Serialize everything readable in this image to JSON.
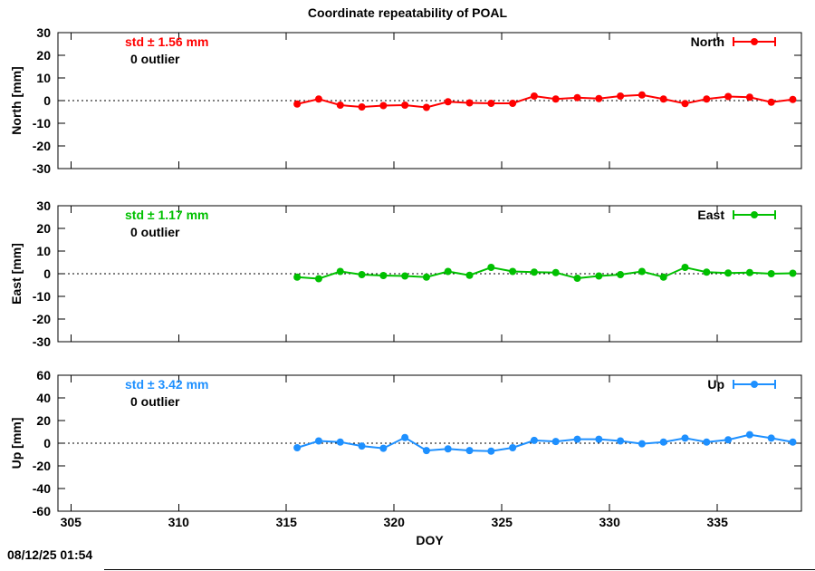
{
  "title": "Coordinate repeatability of POAL",
  "timestamp": "08/12/25 01:54",
  "x_axis": {
    "label": "DOY",
    "range": [
      304.4,
      338.9
    ],
    "ticks": [
      305,
      310,
      315,
      320,
      325,
      330,
      335
    ]
  },
  "chart_data": [
    {
      "type": "line",
      "name": "north-panel",
      "legend": "North",
      "ylabel": "North [mm]",
      "color": "#ff0000",
      "std_label": "std ± 1.56 mm",
      "outlier_label": "0 outlier",
      "ylim": [
        -30,
        30
      ],
      "yticks": [
        -30,
        -20,
        -10,
        0,
        10,
        20,
        30
      ],
      "zero_line": true,
      "x": [
        315.5,
        316.5,
        317.5,
        318.5,
        319.5,
        320.5,
        321.5,
        322.5,
        323.5,
        324.5,
        325.5,
        326.5,
        327.5,
        328.5,
        329.5,
        330.5,
        331.5,
        332.5,
        333.5,
        334.5,
        335.5,
        336.5,
        337.5,
        338.5
      ],
      "values": [
        -1.5,
        0.7,
        -2.0,
        -2.8,
        -2.2,
        -2.0,
        -3.0,
        -0.5,
        -1.0,
        -1.2,
        -1.2,
        2.0,
        0.7,
        1.3,
        0.9,
        2.0,
        2.5,
        0.7,
        -1.3,
        0.7,
        1.8,
        1.5,
        -0.7,
        0.5
      ]
    },
    {
      "type": "line",
      "name": "east-panel",
      "legend": "East",
      "ylabel": "East [mm]",
      "color": "#00c000",
      "std_label": "std ± 1.17 mm",
      "outlier_label": "0 outlier",
      "ylim": [
        -30,
        30
      ],
      "yticks": [
        -30,
        -20,
        -10,
        0,
        10,
        20,
        30
      ],
      "zero_line": true,
      "x": [
        315.5,
        316.5,
        317.5,
        318.5,
        319.5,
        320.5,
        321.5,
        322.5,
        323.5,
        324.5,
        325.5,
        326.5,
        327.5,
        328.5,
        329.5,
        330.5,
        331.5,
        332.5,
        333.5,
        334.5,
        335.5,
        336.5,
        337.5,
        338.5
      ],
      "values": [
        -1.5,
        -2.2,
        1.0,
        -0.4,
        -0.8,
        -1.0,
        -1.5,
        1.0,
        -0.7,
        2.8,
        1.0,
        0.7,
        0.5,
        -2.0,
        -1.0,
        -0.4,
        1.0,
        -1.5,
        2.8,
        0.7,
        0.3,
        0.5,
        0.0,
        0.2
      ]
    },
    {
      "type": "line",
      "name": "up-panel",
      "legend": "Up",
      "ylabel": "Up [mm]",
      "color": "#1e90ff",
      "std_label": "std ± 3.42 mm",
      "outlier_label": "0 outlier",
      "ylim": [
        -60,
        60
      ],
      "yticks": [
        -60,
        -40,
        -20,
        0,
        20,
        40,
        60
      ],
      "zero_line": true,
      "x": [
        315.5,
        316.5,
        317.5,
        318.5,
        319.5,
        320.5,
        321.5,
        322.5,
        323.5,
        324.5,
        325.5,
        326.5,
        327.5,
        328.5,
        329.5,
        330.5,
        331.5,
        332.5,
        333.5,
        334.5,
        335.5,
        336.5,
        337.5,
        338.5
      ],
      "values": [
        -4.0,
        2.0,
        1.0,
        -2.5,
        -4.5,
        5.0,
        -6.5,
        -5.0,
        -6.5,
        -7.0,
        -4.0,
        2.5,
        1.5,
        3.5,
        3.5,
        2.0,
        -0.5,
        1.0,
        4.5,
        1.0,
        3.0,
        7.5,
        4.5,
        1.0
      ]
    }
  ]
}
